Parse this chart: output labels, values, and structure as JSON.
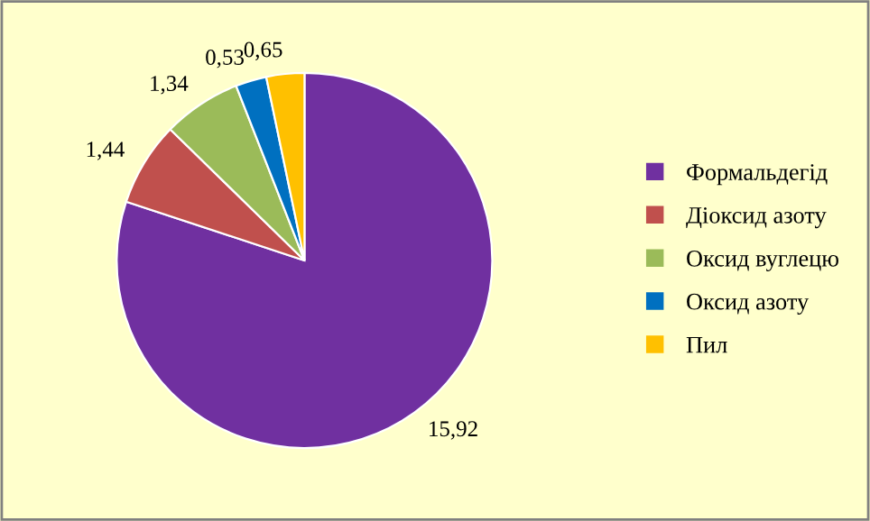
{
  "chart_data": {
    "type": "pie",
    "categories": [
      "Формальдегід",
      "Діоксид азоту",
      "Оксид вуглецю",
      "Оксид азоту",
      "Пил"
    ],
    "values": [
      15.92,
      1.44,
      1.34,
      0.53,
      0.65
    ],
    "value_labels": [
      "15,92",
      "1,44",
      "1,34",
      "0,53",
      "0,65"
    ],
    "colors": [
      "#7030a0",
      "#c0504d",
      "#9bbb59",
      "#0070c0",
      "#ffc000"
    ],
    "legend": "right"
  }
}
